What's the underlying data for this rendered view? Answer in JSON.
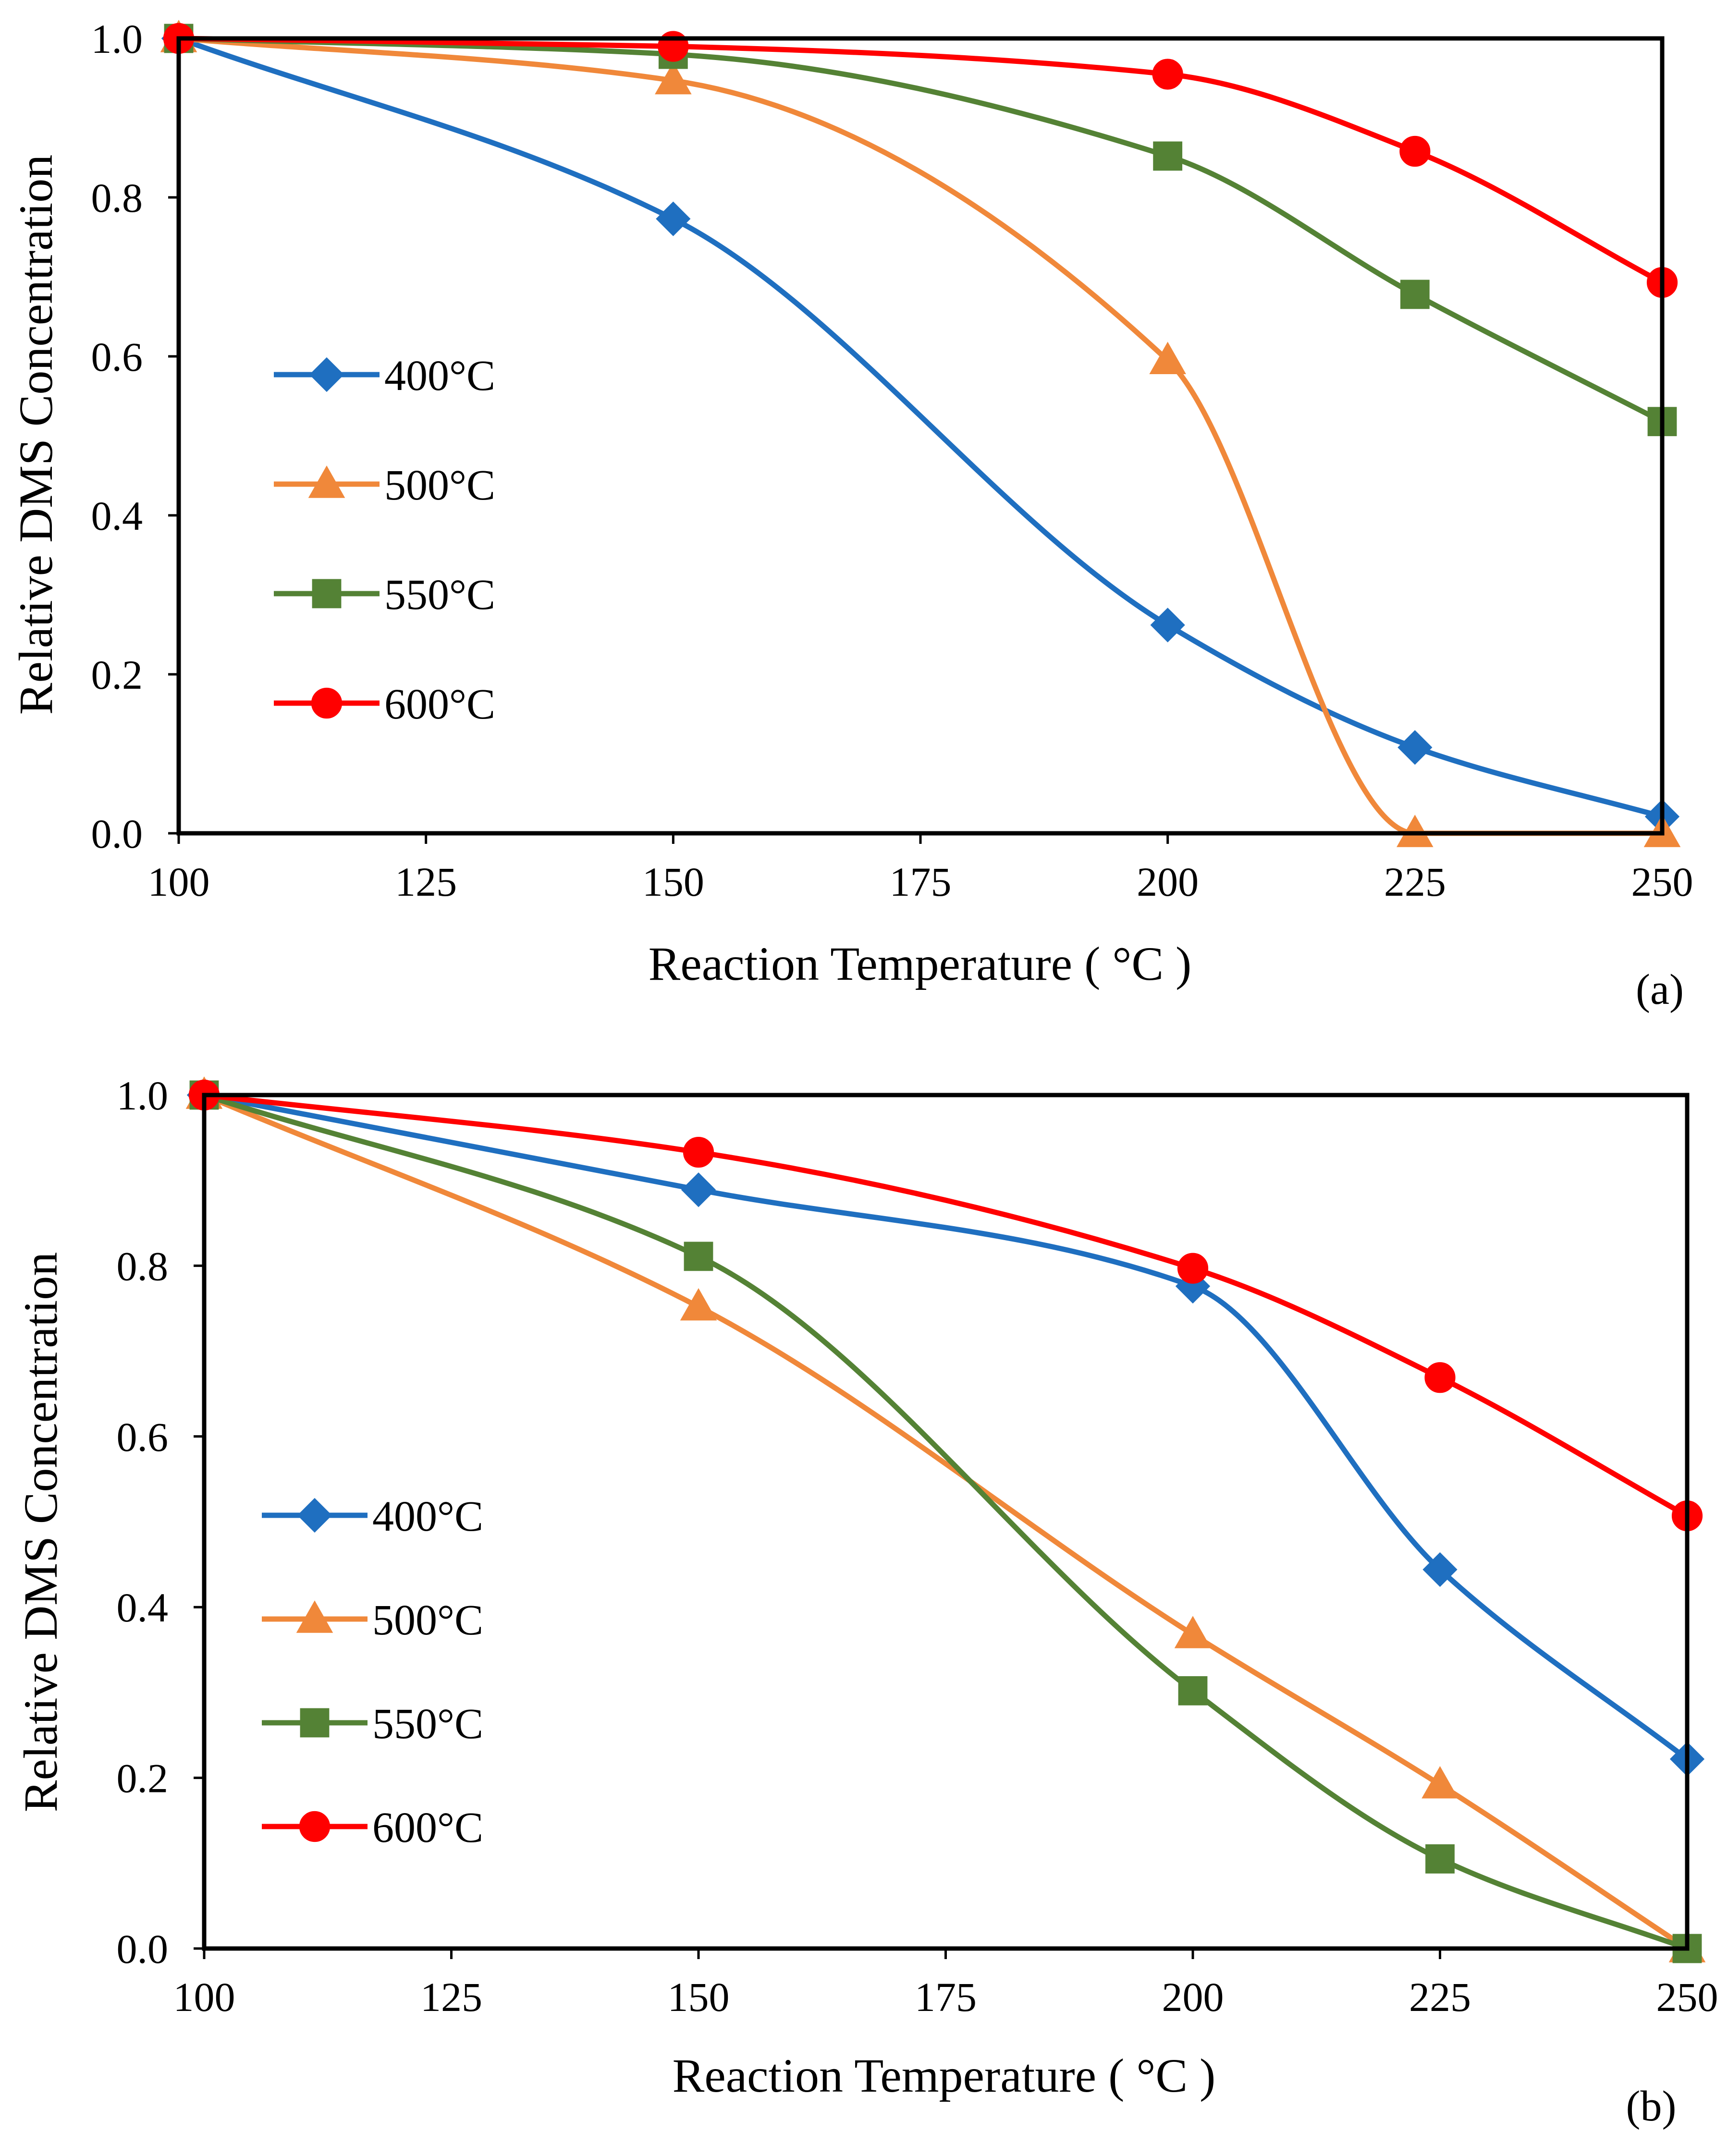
{
  "chart_data": [
    {
      "type": "line",
      "panel_label": "(a)",
      "xlabel": "Reaction Temperature ( °C )",
      "ylabel": "Relative DMS Concentration",
      "xlim": [
        100,
        250
      ],
      "ylim": [
        0,
        1
      ],
      "x_ticks": [
        "100",
        "125",
        "150",
        "175",
        "200",
        "225",
        "250"
      ],
      "y_ticks": [
        "0.0",
        "0.2",
        "0.4",
        "0.6",
        "0.8",
        "1.0"
      ],
      "x": [
        100,
        150,
        200,
        225,
        250
      ],
      "legend_position": "middle-left",
      "series": [
        {
          "name": "400°C",
          "color": "#1F6FC0",
          "marker": "diamond",
          "values": [
            1.0,
            0.773,
            0.262,
            0.108,
            0.021
          ]
        },
        {
          "name": "500°C",
          "color": "#F0883A",
          "marker": "triangle",
          "values": [
            1.0,
            0.947,
            0.595,
            0.0,
            0.0
          ]
        },
        {
          "name": "550°C",
          "color": "#548235",
          "marker": "square",
          "values": [
            1.0,
            0.98,
            0.852,
            0.678,
            0.518
          ]
        },
        {
          "name": "600°C",
          "color": "#FF0000",
          "marker": "circle",
          "values": [
            1.0,
            0.99,
            0.955,
            0.858,
            0.693
          ]
        }
      ]
    },
    {
      "type": "line",
      "panel_label": "(b)",
      "xlabel": "Reaction Temperature ( °C )",
      "ylabel": "Relative DMS Concentration",
      "xlim": [
        100,
        250
      ],
      "ylim": [
        0,
        1
      ],
      "x_ticks": [
        "100",
        "125",
        "150",
        "175",
        "200",
        "225",
        "250"
      ],
      "y_ticks": [
        "0.0",
        "0.2",
        "0.4",
        "0.6",
        "0.8",
        "1.0"
      ],
      "x": [
        100,
        150,
        200,
        225,
        250
      ],
      "legend_position": "middle-left",
      "series": [
        {
          "name": "400°C",
          "color": "#1F6FC0",
          "marker": "diamond",
          "values": [
            1.0,
            0.889,
            0.776,
            0.444,
            0.222
          ]
        },
        {
          "name": "500°C",
          "color": "#F0883A",
          "marker": "triangle",
          "values": [
            1.0,
            0.752,
            0.368,
            0.192,
            0.0
          ]
        },
        {
          "name": "550°C",
          "color": "#548235",
          "marker": "square",
          "values": [
            1.0,
            0.811,
            0.302,
            0.105,
            0.0
          ]
        },
        {
          "name": "600°C",
          "color": "#FF0000",
          "marker": "circle",
          "values": [
            1.0,
            0.933,
            0.797,
            0.669,
            0.507
          ]
        }
      ]
    }
  ]
}
